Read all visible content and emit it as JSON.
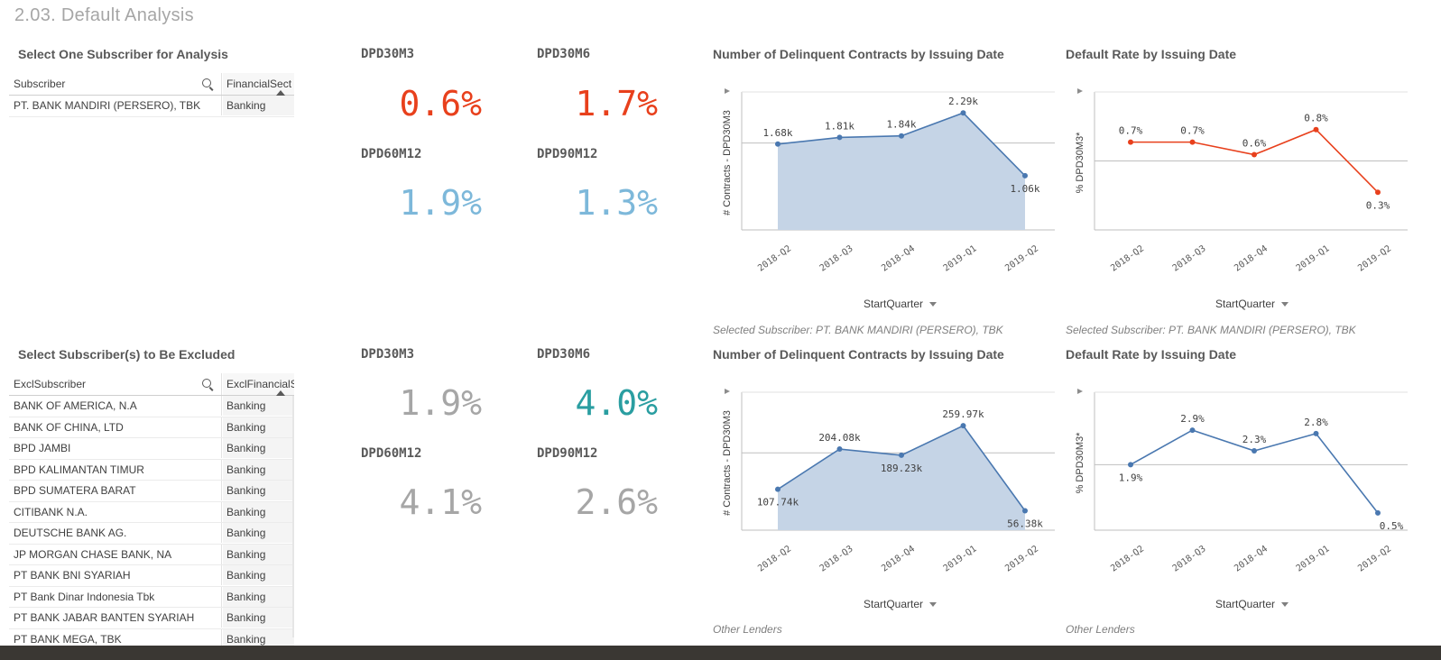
{
  "page_title": "2.03. Default Analysis",
  "sections": {
    "select_subscriber": "Select One Subscriber for Analysis",
    "exclude_subscribers": "Select Subscriber(s) to Be Excluded"
  },
  "table_top": {
    "col1": "Subscriber",
    "col2": "FinancialSect",
    "rows": [
      {
        "name": "PT. BANK MANDIRI (PERSERO), TBK",
        "sector": "Banking"
      }
    ]
  },
  "table_bottom": {
    "col1": "ExclSubscriber",
    "col2": "ExclFinancialS",
    "rows": [
      {
        "name": "BANK OF AMERICA, N.A",
        "sector": "Banking"
      },
      {
        "name": "BANK OF CHINA, LTD",
        "sector": "Banking"
      },
      {
        "name": "BPD JAMBI",
        "sector": "Banking"
      },
      {
        "name": "BPD KALIMANTAN TIMUR",
        "sector": "Banking"
      },
      {
        "name": "BPD SUMATERA BARAT",
        "sector": "Banking"
      },
      {
        "name": "CITIBANK N.A.",
        "sector": "Banking"
      },
      {
        "name": "DEUTSCHE BANK AG.",
        "sector": "Banking"
      },
      {
        "name": "JP MORGAN CHASE BANK, NA",
        "sector": "Banking"
      },
      {
        "name": "PT BANK BNI SYARIAH",
        "sector": "Banking"
      },
      {
        "name": "PT Bank Dinar Indonesia Tbk",
        "sector": "Banking"
      },
      {
        "name": "PT BANK JABAR BANTEN SYARIAH",
        "sector": "Banking"
      },
      {
        "name": "PT BANK MEGA, TBK",
        "sector": "Banking"
      }
    ]
  },
  "kpis_top": [
    {
      "label": "DPD30M3",
      "value": "0.6%",
      "color": "#e8401c"
    },
    {
      "label": "DPD30M6",
      "value": "1.7%",
      "color": "#e8401c"
    },
    {
      "label": "DPD60M12",
      "value": "1.9%",
      "color": "#7db8da"
    },
    {
      "label": "DPD90M12",
      "value": "1.3%",
      "color": "#7db8da"
    }
  ],
  "kpis_bottom": [
    {
      "label": "DPD30M3",
      "value": "1.9%",
      "color": "#a6a6a6"
    },
    {
      "label": "DPD30M6",
      "value": "4.0%",
      "color": "#2a9ea1"
    },
    {
      "label": "DPD60M12",
      "value": "4.1%",
      "color": "#a6a6a6"
    },
    {
      "label": "DPD90M12",
      "value": "2.6%",
      "color": "#a6a6a6"
    }
  ],
  "dimension_label": "StartQuarter",
  "captions": {
    "top": "Selected Subscriber: PT. BANK MANDIRI (PERSERO), TBK",
    "bottom": "Other Lenders"
  },
  "chart_data": [
    {
      "type": "area",
      "title": "Number of Delinquent Contracts by Issuing Date",
      "xlabel": "StartQuarter",
      "ylabel": "# Contracts - DPD30M3",
      "categories": [
        "2018-Q2",
        "2018-Q3",
        "2018-Q4",
        "2019-Q1",
        "2019-Q2"
      ],
      "values": [
        1680,
        1810,
        1840,
        2290,
        1060
      ],
      "labels": [
        "1.68k",
        "1.81k",
        "1.84k",
        "2.29k",
        "1.06k"
      ],
      "ylim": [
        0,
        2700
      ],
      "reference_line": 1700,
      "color": "#4a78b0",
      "fill": "#c5d4e6"
    },
    {
      "type": "line",
      "title": "Default Rate by Issuing Date",
      "xlabel": "StartQuarter",
      "ylabel": "% DPD30M3*",
      "categories": [
        "2018-Q2",
        "2018-Q3",
        "2018-Q4",
        "2019-Q1",
        "2019-Q2"
      ],
      "values": [
        0.7,
        0.7,
        0.6,
        0.8,
        0.3
      ],
      "labels": [
        "0.7%",
        "0.7%",
        "0.6%",
        "0.8%",
        "0.3%"
      ],
      "ylim": [
        0,
        1.1
      ],
      "reference_line": 0.55,
      "color": "#e8401c"
    },
    {
      "type": "area",
      "title": "Number of Delinquent Contracts by Issuing Date",
      "xlabel": "StartQuarter",
      "ylabel": "# Contracts - DPD30M3",
      "categories": [
        "2018-Q2",
        "2018-Q3",
        "2018-Q4",
        "2019-Q1",
        "2019-Q2"
      ],
      "values": [
        107740,
        204080,
        189230,
        259970,
        56380
      ],
      "labels": [
        "107.74k",
        "204.08k",
        "189.23k",
        "259.97k",
        "56.38k"
      ],
      "ylim": [
        10000,
        340000
      ],
      "reference_line": 195000,
      "color": "#4a78b0",
      "fill": "#c5d4e6"
    },
    {
      "type": "line",
      "title": "Default Rate by Issuing Date",
      "xlabel": "StartQuarter",
      "ylabel": "% DPD30M3*",
      "categories": [
        "2018-Q2",
        "2018-Q3",
        "2018-Q4",
        "2019-Q1",
        "2019-Q2"
      ],
      "values": [
        1.9,
        2.9,
        2.3,
        2.8,
        0.5
      ],
      "labels": [
        "1.9%",
        "2.9%",
        "2.3%",
        "2.8%",
        "0.5%"
      ],
      "ylim": [
        0,
        4.0
      ],
      "reference_line": 1.9,
      "color": "#4a78b0"
    }
  ]
}
